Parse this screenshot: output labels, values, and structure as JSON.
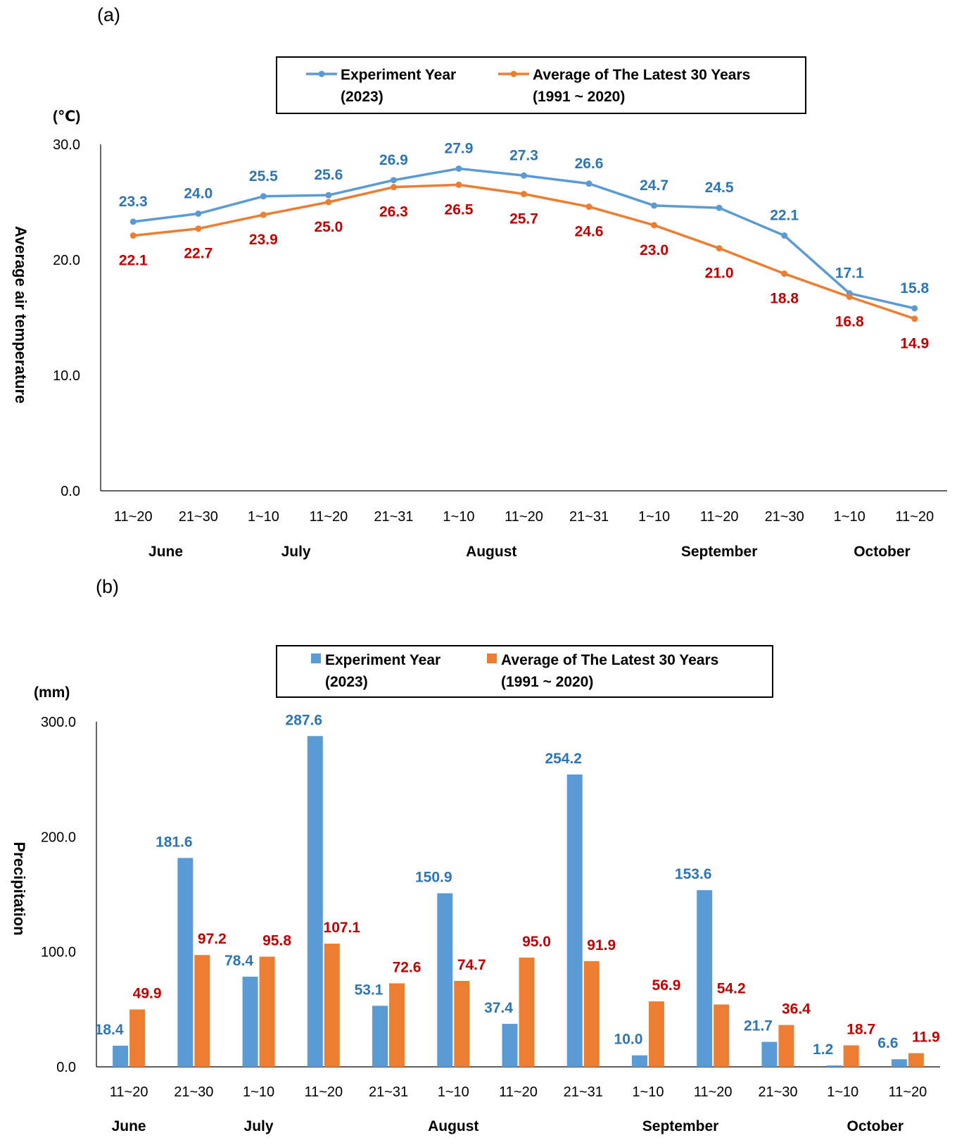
{
  "colors": {
    "experiment": "#5B9BD5",
    "average": "#ED7D31",
    "label_exp": "#2E75B6",
    "label_avg": "#C00000"
  },
  "chart_data": [
    {
      "panel": "(a)",
      "type": "line",
      "ylabel": "Average air temperature",
      "unit": "(℃)",
      "ylim": [
        0,
        30
      ],
      "yticks": [
        "0.0",
        "10.0",
        "20.0",
        "30.0"
      ],
      "categories": [
        "11~20",
        "21~30",
        "1~10",
        "11~20",
        "21~31",
        "1~10",
        "11~20",
        "21~31",
        "1~10",
        "11~20",
        "21~30",
        "1~10",
        "11~20"
      ],
      "months": [
        {
          "name": "June",
          "span": [
            0,
            1
          ]
        },
        {
          "name": "July",
          "span": [
            2,
            3
          ]
        },
        {
          "name": "August",
          "span": [
            4,
            7
          ]
        },
        {
          "name": "September",
          "span": [
            8,
            10
          ]
        },
        {
          "name": "October",
          "span": [
            11,
            12
          ]
        }
      ],
      "legend": [
        {
          "line1": "Experiment Year",
          "line2": "(2023)"
        },
        {
          "line1": "Average of The Latest 30 Years",
          "line2": "(1991 ~ 2020)"
        }
      ],
      "series": [
        {
          "name": "Experiment Year (2023)",
          "values": [
            23.3,
            24.0,
            25.5,
            25.6,
            26.9,
            27.9,
            27.3,
            26.6,
            24.7,
            24.5,
            22.1,
            17.1,
            15.8
          ],
          "labels": [
            "23.3",
            "24.0",
            "25.5",
            "25.6",
            "26.9",
            "27.9",
            "27.3",
            "26.6",
            "24.7",
            "24.5",
            "22.1",
            "17.1",
            "15.8"
          ]
        },
        {
          "name": "Average of The Latest 30 Years (1991 ~ 2020)",
          "values": [
            22.1,
            22.7,
            23.9,
            25.0,
            26.3,
            26.5,
            25.7,
            24.6,
            23.0,
            21.0,
            18.8,
            16.8,
            14.9
          ],
          "labels": [
            "22.1",
            "22.7",
            "23.9",
            "25.0",
            "26.3",
            "26.5",
            "25.7",
            "24.6",
            "23.0",
            "21.0",
            "18.8",
            "16.8",
            "14.9"
          ]
        }
      ]
    },
    {
      "panel": "(b)",
      "type": "bar",
      "ylabel": "Precipitation",
      "unit": "(mm)",
      "ylim": [
        0,
        300
      ],
      "yticks": [
        "0.0",
        "100.0",
        "200.0",
        "300.0"
      ],
      "categories": [
        "11~20",
        "21~30",
        "1~10",
        "11~20",
        "21~31",
        "1~10",
        "11~20",
        "21~31",
        "1~10",
        "11~20",
        "21~30",
        "1~10",
        "11~20"
      ],
      "months": [
        {
          "name": "June",
          "span": [
            0,
            0
          ]
        },
        {
          "name": "July",
          "span": [
            1,
            3
          ]
        },
        {
          "name": "August",
          "span": [
            4,
            6
          ]
        },
        {
          "name": "September",
          "span": [
            7,
            10
          ]
        },
        {
          "name": "October",
          "span": [
            11,
            12
          ]
        }
      ],
      "legend": [
        {
          "line1": "Experiment Year",
          "line2": "(2023)"
        },
        {
          "line1": "Average of The Latest 30 Years",
          "line2": "(1991 ~ 2020)"
        }
      ],
      "series": [
        {
          "name": "Experiment Year (2023)",
          "values": [
            18.4,
            181.6,
            78.4,
            287.6,
            53.1,
            150.9,
            37.4,
            254.2,
            10.0,
            153.6,
            21.7,
            1.2,
            6.6
          ],
          "labels": [
            "18.4",
            "181.6",
            "78.4",
            "287.6",
            "53.1",
            "150.9",
            "37.4",
            "254.2",
            "10.0",
            "153.6",
            "21.7",
            "1.2",
            "6.6"
          ]
        },
        {
          "name": "Average of The Latest 30 Years (1991 ~ 2020)",
          "values": [
            49.9,
            97.2,
            95.8,
            107.1,
            72.6,
            74.7,
            95.0,
            91.9,
            56.9,
            54.2,
            36.4,
            18.7,
            11.9
          ],
          "labels": [
            "49.9",
            "97.2",
            "95.8",
            "107.1",
            "72.6",
            "74.7",
            "95.0",
            "91.9",
            "56.9",
            "54.2",
            "36.4",
            "18.7",
            "11.9"
          ]
        }
      ]
    }
  ]
}
